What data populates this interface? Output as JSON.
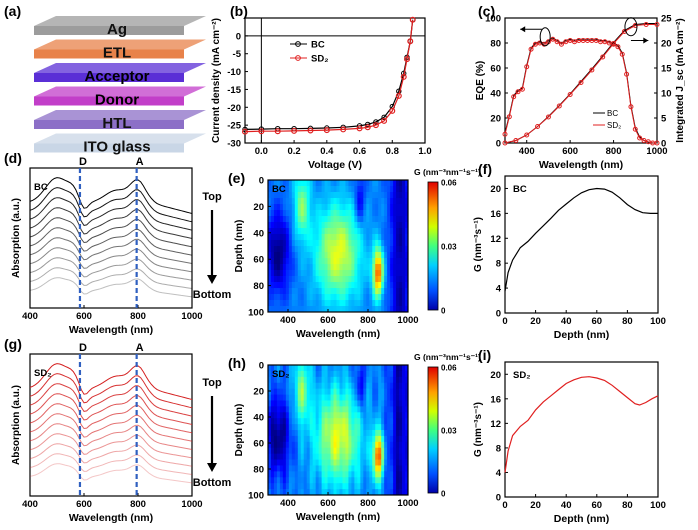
{
  "panels": {
    "a": {
      "label": "(a)",
      "layers": [
        "Ag",
        "ETL",
        "Acceptor",
        "Donor",
        "HTL",
        "ITO glass"
      ],
      "colors": [
        "#9c9c9c",
        "#e8824a",
        "#5a2fd6",
        "#c23ec9",
        "#8c6fc7",
        "#c9d6e6"
      ]
    },
    "b": {
      "label": "(b)"
    },
    "c": {
      "label": "(c)"
    },
    "d": {
      "label": "(d)",
      "tag": "BC",
      "markers": [
        "D",
        "A"
      ],
      "top": "Top",
      "bottom": "Bottom"
    },
    "e": {
      "label": "(e)",
      "tag": "BC",
      "cbar_title": "G (nm⁻³nm⁻¹s⁻¹)",
      "cbar_ticks": [
        "0.06",
        "0.03",
        "0"
      ]
    },
    "f": {
      "label": "(f)",
      "tag": "BC"
    },
    "g": {
      "label": "(g)",
      "tag": "SD₂",
      "markers": [
        "D",
        "A"
      ],
      "top": "Top",
      "bottom": "Bottom"
    },
    "h": {
      "label": "(h)",
      "tag": "SD₂",
      "cbar_title": "G (nm⁻³nm⁻¹s⁻¹)",
      "cbar_ticks": [
        "0.06",
        "0.03",
        "0"
      ]
    },
    "i": {
      "label": "(i)",
      "tag": "SD₂"
    }
  },
  "chart_data": [
    {
      "id": "b",
      "type": "line",
      "xlabel": "Voltage (V)",
      "ylabel": "Current density (mA cm⁻²)",
      "xlim": [
        -0.1,
        1.0
      ],
      "ylim": [
        -30,
        5
      ],
      "xticks": [
        "0.0",
        "0.2",
        "0.4",
        "0.6",
        "0.8",
        "1.0"
      ],
      "yticks": [
        "0",
        "-5",
        "-10",
        "-15",
        "-20",
        "-25",
        "-30"
      ],
      "series": [
        {
          "name": "BC",
          "color": "#000000",
          "x": [
            -0.1,
            0.0,
            0.1,
            0.2,
            0.3,
            0.4,
            0.5,
            0.6,
            0.65,
            0.7,
            0.75,
            0.8,
            0.84,
            0.87,
            0.89,
            0.91,
            0.925
          ],
          "y": [
            -26.2,
            -26.1,
            -26.0,
            -26.0,
            -25.9,
            -25.8,
            -25.6,
            -25.2,
            -24.8,
            -24.1,
            -22.8,
            -19.8,
            -15.5,
            -10.5,
            -6.0,
            -1.5,
            4.5
          ]
        },
        {
          "name": "SD₂",
          "color": "#e02020",
          "x": [
            -0.1,
            0.0,
            0.1,
            0.2,
            0.3,
            0.4,
            0.5,
            0.6,
            0.65,
            0.7,
            0.75,
            0.8,
            0.84,
            0.87,
            0.89,
            0.91,
            0.925
          ],
          "y": [
            -26.8,
            -26.7,
            -26.7,
            -26.6,
            -26.5,
            -26.4,
            -26.2,
            -25.9,
            -25.6,
            -25.0,
            -23.8,
            -21.0,
            -16.8,
            -11.5,
            -6.5,
            -1.5,
            4.5
          ]
        }
      ]
    },
    {
      "id": "c",
      "type": "line",
      "xlabel": "Wavelength (nm)",
      "ylabel": "EQE (%)",
      "ylabel2": "Integrated J_sc (mA cm⁻²)",
      "xlim": [
        300,
        1000
      ],
      "ylim": [
        0,
        100
      ],
      "ylim2": [
        0,
        25
      ],
      "xticks": [
        "400",
        "600",
        "800",
        "1000"
      ],
      "yticks": [
        "0",
        "20",
        "40",
        "60",
        "80",
        "100"
      ],
      "yticks2": [
        "0",
        "5",
        "10",
        "15",
        "20",
        "25"
      ],
      "series": [
        {
          "name": "BC",
          "color": "#000000",
          "x": [
            300,
            320,
            340,
            360,
            380,
            400,
            420,
            440,
            460,
            480,
            500,
            520,
            540,
            560,
            580,
            600,
            620,
            640,
            660,
            680,
            700,
            720,
            740,
            760,
            780,
            800,
            820,
            840,
            860,
            880,
            900,
            920,
            940,
            960,
            980,
            1000
          ],
          "y": [
            8,
            22,
            38,
            42,
            44,
            62,
            76,
            80,
            81,
            80,
            82,
            84,
            82,
            80,
            82,
            83,
            82,
            83,
            83,
            83,
            83,
            83,
            82,
            82,
            81,
            80,
            78,
            72,
            56,
            30,
            12,
            5,
            2,
            1,
            0,
            0
          ]
        },
        {
          "name": "SD₂",
          "color": "#e02020",
          "x": [
            300,
            320,
            340,
            360,
            380,
            400,
            420,
            440,
            460,
            480,
            500,
            520,
            540,
            560,
            580,
            600,
            620,
            640,
            660,
            680,
            700,
            720,
            740,
            760,
            780,
            800,
            820,
            840,
            860,
            880,
            900,
            920,
            940,
            960,
            980,
            1000
          ],
          "y": [
            7,
            21,
            37,
            41,
            43,
            61,
            75,
            79,
            80,
            79,
            81,
            83,
            81,
            79,
            81,
            82,
            81,
            82,
            82,
            82,
            82,
            82,
            81,
            81,
            80,
            79,
            77,
            71,
            55,
            29,
            11,
            4,
            2,
            1,
            0,
            0
          ]
        },
        {
          "name": "BC integrated",
          "color": "#000000",
          "axis": "right",
          "x": [
            300,
            350,
            400,
            450,
            500,
            550,
            600,
            650,
            700,
            750,
            800,
            850,
            900,
            950,
            1000
          ],
          "y": [
            0,
            0.5,
            1.6,
            3.3,
            5.3,
            7.5,
            9.8,
            12.3,
            14.8,
            17.4,
            20.1,
            22.5,
            23.7,
            23.9,
            23.9
          ]
        },
        {
          "name": "SD₂ integrated",
          "color": "#e02020",
          "axis": "right",
          "x": [
            300,
            350,
            400,
            450,
            500,
            550,
            600,
            650,
            700,
            750,
            800,
            850,
            900,
            950,
            1000
          ],
          "y": [
            0,
            0.5,
            1.6,
            3.3,
            5.2,
            7.4,
            9.7,
            12.1,
            14.6,
            17.2,
            19.9,
            22.3,
            23.5,
            23.7,
            23.7
          ]
        }
      ]
    },
    {
      "id": "d",
      "type": "line",
      "xlabel": "Wavelength (nm)",
      "ylabel": "Absorption (a.u.)",
      "xlim": [
        400,
        1000
      ],
      "xticks": [
        "400",
        "600",
        "800",
        "1000"
      ],
      "marker_x": [
        585,
        795
      ],
      "n_curves": 11,
      "color": "#000000"
    },
    {
      "id": "e",
      "type": "heatmap",
      "xlabel": "Wavelength (nm)",
      "ylabel": "Depth (nm)",
      "xlim": [
        300,
        1000
      ],
      "ylim": [
        0,
        100
      ],
      "xticks": [
        "400",
        "600",
        "800",
        "1000"
      ],
      "yticks": [
        "0",
        "20",
        "40",
        "60",
        "80",
        "100"
      ],
      "zlim": [
        0,
        0.06
      ]
    },
    {
      "id": "f",
      "type": "line",
      "xlabel": "Depth (nm)",
      "ylabel": "G (nm⁻³s⁻¹)",
      "xlim": [
        0,
        100
      ],
      "ylim": [
        0,
        22
      ],
      "xticks": [
        "0",
        "20",
        "40",
        "60",
        "80",
        "100"
      ],
      "yticks": [
        "0",
        "4",
        "8",
        "12",
        "16",
        "20"
      ],
      "series": [
        {
          "name": "BC",
          "color": "#000000",
          "x": [
            0,
            2,
            5,
            10,
            15,
            20,
            25,
            30,
            35,
            40,
            45,
            50,
            55,
            60,
            65,
            70,
            75,
            80,
            85,
            90,
            95,
            100
          ],
          "y": [
            3.5,
            6.5,
            8.5,
            10.5,
            11.5,
            12.8,
            14.0,
            15.2,
            16.5,
            17.5,
            18.5,
            19.3,
            19.8,
            20.0,
            19.9,
            19.4,
            18.5,
            17.4,
            16.6,
            16.1,
            16.0,
            16.0
          ]
        }
      ]
    },
    {
      "id": "g",
      "type": "line",
      "xlabel": "Wavelength (nm)",
      "ylabel": "Absorption (a.u.)",
      "xlim": [
        400,
        1000
      ],
      "xticks": [
        "400",
        "600",
        "800",
        "1000"
      ],
      "marker_x": [
        585,
        795
      ],
      "n_curves": 11,
      "color": "#d42020"
    },
    {
      "id": "h",
      "type": "heatmap",
      "xlabel": "Wavelength (nm)",
      "ylabel": "Depth (nm)",
      "xlim": [
        300,
        1000
      ],
      "ylim": [
        0,
        100
      ],
      "xticks": [
        "400",
        "600",
        "800",
        "1000"
      ],
      "yticks": [
        "0",
        "20",
        "40",
        "60",
        "80",
        "100"
      ],
      "zlim": [
        0,
        0.06
      ]
    },
    {
      "id": "i",
      "type": "line",
      "xlabel": "Depth (nm)",
      "ylabel": "G (nm⁻³s⁻¹)",
      "xlim": [
        0,
        100
      ],
      "ylim": [
        0,
        22
      ],
      "xticks": [
        "0",
        "20",
        "40",
        "60",
        "80",
        "100"
      ],
      "yticks": [
        "0",
        "4",
        "8",
        "12",
        "16",
        "20"
      ],
      "series": [
        {
          "name": "SD₂",
          "color": "#e02020",
          "x": [
            0,
            2,
            5,
            10,
            15,
            20,
            25,
            30,
            35,
            40,
            45,
            50,
            55,
            60,
            65,
            70,
            75,
            80,
            85,
            88,
            92,
            96,
            100
          ],
          "y": [
            4,
            7.5,
            10,
            11.5,
            12.5,
            14.2,
            15.5,
            16.5,
            17.5,
            18.5,
            19.1,
            19.5,
            19.6,
            19.4,
            19.0,
            18.2,
            17.2,
            16.2,
            15.2,
            15.0,
            15.4,
            16.0,
            16.5
          ]
        }
      ]
    }
  ]
}
